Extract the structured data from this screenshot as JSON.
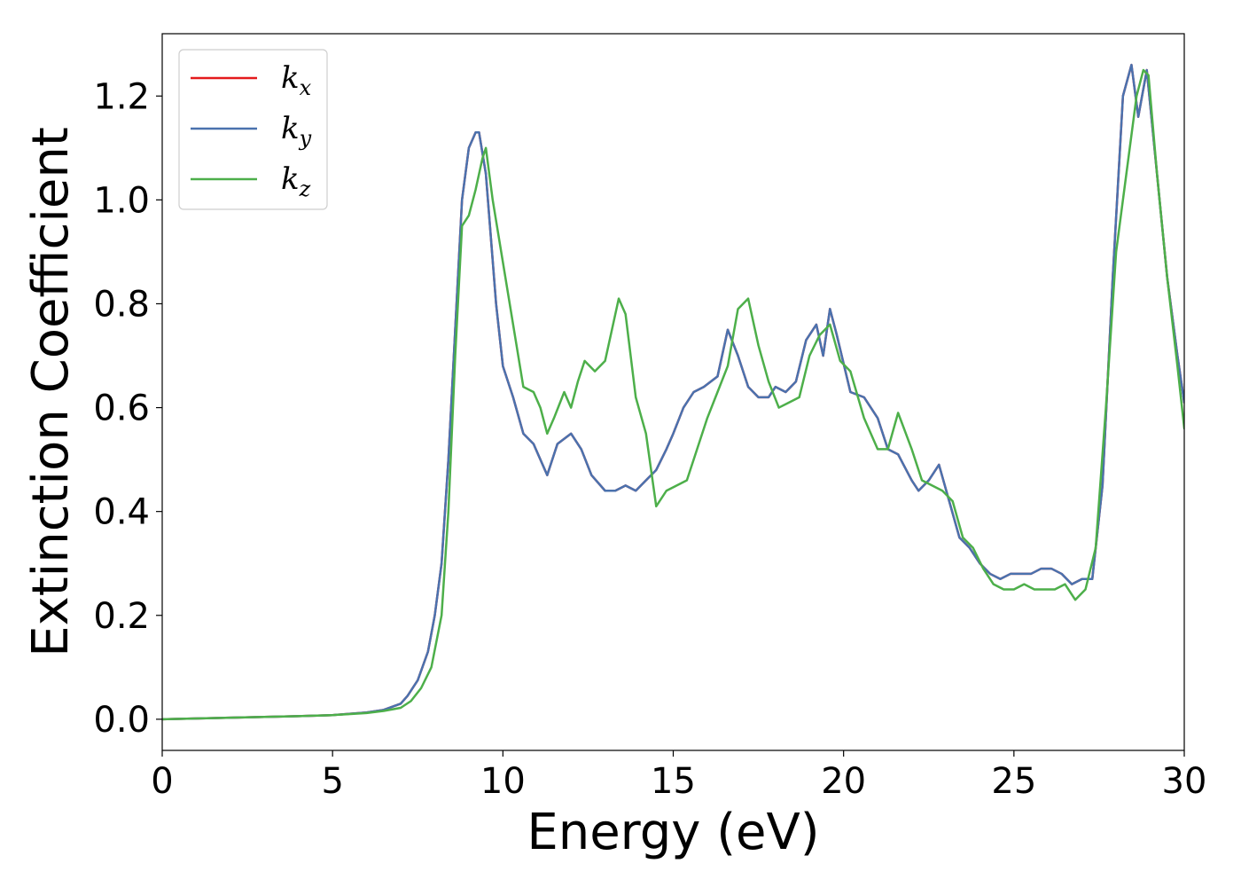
{
  "chart_data": {
    "type": "line",
    "title": "",
    "xlabel": "Energy (eV)",
    "ylabel": "Extinction Coefficient",
    "xlim": [
      0,
      30
    ],
    "ylim": [
      -0.06,
      1.32
    ],
    "xticks": [
      0,
      5,
      10,
      15,
      20,
      25,
      30
    ],
    "xtick_labels": [
      "0",
      "5",
      "10",
      "15",
      "20",
      "25",
      "30"
    ],
    "yticks": [
      0.0,
      0.2,
      0.4,
      0.6,
      0.8,
      1.0,
      1.2
    ],
    "ytick_labels": [
      "0.0",
      "0.2",
      "0.4",
      "0.6",
      "0.8",
      "1.0",
      "1.2"
    ],
    "grid": false,
    "legend_position": "top-left",
    "series": [
      {
        "name": "k",
        "subscript": "x",
        "color": "#e41a1c",
        "x": [
          0,
          2,
          4,
          5,
          6,
          6.5,
          7,
          7.2,
          7.5,
          7.8,
          8.0,
          8.2,
          8.4,
          8.6,
          8.8,
          9.0,
          9.2,
          9.3,
          9.5,
          9.8,
          10.0,
          10.3,
          10.6,
          10.9,
          11.3,
          11.6,
          12.0,
          12.3,
          12.6,
          13.0,
          13.3,
          13.6,
          13.9,
          14.2,
          14.5,
          14.8,
          15.0,
          15.3,
          15.6,
          15.9,
          16.3,
          16.6,
          16.9,
          17.2,
          17.5,
          17.8,
          18.0,
          18.3,
          18.6,
          18.9,
          19.2,
          19.4,
          19.6,
          19.8,
          20.2,
          20.6,
          21.0,
          21.3,
          21.6,
          22.0,
          22.2,
          22.5,
          22.8,
          23.1,
          23.4,
          23.7,
          24.0,
          24.3,
          24.6,
          24.9,
          25.2,
          25.5,
          25.8,
          26.1,
          26.4,
          26.7,
          27.0,
          27.3,
          27.6,
          27.9,
          28.2,
          28.45,
          28.65,
          28.9,
          29.2,
          29.5,
          29.8,
          30.0
        ],
        "values": [
          0.0,
          0.003,
          0.006,
          0.008,
          0.013,
          0.018,
          0.03,
          0.045,
          0.075,
          0.13,
          0.2,
          0.3,
          0.5,
          0.75,
          1.0,
          1.1,
          1.13,
          1.13,
          1.05,
          0.8,
          0.68,
          0.62,
          0.55,
          0.53,
          0.47,
          0.53,
          0.55,
          0.52,
          0.47,
          0.44,
          0.44,
          0.45,
          0.44,
          0.46,
          0.48,
          0.52,
          0.55,
          0.6,
          0.63,
          0.64,
          0.66,
          0.75,
          0.7,
          0.64,
          0.62,
          0.62,
          0.64,
          0.63,
          0.65,
          0.73,
          0.76,
          0.7,
          0.79,
          0.74,
          0.63,
          0.62,
          0.58,
          0.52,
          0.51,
          0.46,
          0.44,
          0.46,
          0.49,
          0.42,
          0.35,
          0.33,
          0.3,
          0.28,
          0.27,
          0.28,
          0.28,
          0.28,
          0.29,
          0.29,
          0.28,
          0.26,
          0.27,
          0.27,
          0.45,
          0.85,
          1.2,
          1.26,
          1.16,
          1.25,
          1.05,
          0.85,
          0.7,
          0.61
        ]
      },
      {
        "name": "k",
        "subscript": "y",
        "color": "#4a72ae",
        "x": [
          0,
          2,
          4,
          5,
          6,
          6.5,
          7,
          7.2,
          7.5,
          7.8,
          8.0,
          8.2,
          8.4,
          8.6,
          8.8,
          9.0,
          9.2,
          9.3,
          9.5,
          9.8,
          10.0,
          10.3,
          10.6,
          10.9,
          11.3,
          11.6,
          12.0,
          12.3,
          12.6,
          13.0,
          13.3,
          13.6,
          13.9,
          14.2,
          14.5,
          14.8,
          15.0,
          15.3,
          15.6,
          15.9,
          16.3,
          16.6,
          16.9,
          17.2,
          17.5,
          17.8,
          18.0,
          18.3,
          18.6,
          18.9,
          19.2,
          19.4,
          19.6,
          19.8,
          20.2,
          20.6,
          21.0,
          21.3,
          21.6,
          22.0,
          22.2,
          22.5,
          22.8,
          23.1,
          23.4,
          23.7,
          24.0,
          24.3,
          24.6,
          24.9,
          25.2,
          25.5,
          25.8,
          26.1,
          26.4,
          26.7,
          27.0,
          27.3,
          27.6,
          27.9,
          28.2,
          28.45,
          28.65,
          28.9,
          29.2,
          29.5,
          29.8,
          30.0
        ],
        "values": [
          0.0,
          0.003,
          0.006,
          0.008,
          0.013,
          0.018,
          0.03,
          0.045,
          0.075,
          0.13,
          0.2,
          0.3,
          0.5,
          0.75,
          1.0,
          1.1,
          1.13,
          1.13,
          1.05,
          0.8,
          0.68,
          0.62,
          0.55,
          0.53,
          0.47,
          0.53,
          0.55,
          0.52,
          0.47,
          0.44,
          0.44,
          0.45,
          0.44,
          0.46,
          0.48,
          0.52,
          0.55,
          0.6,
          0.63,
          0.64,
          0.66,
          0.75,
          0.7,
          0.64,
          0.62,
          0.62,
          0.64,
          0.63,
          0.65,
          0.73,
          0.76,
          0.7,
          0.79,
          0.74,
          0.63,
          0.62,
          0.58,
          0.52,
          0.51,
          0.46,
          0.44,
          0.46,
          0.49,
          0.42,
          0.35,
          0.33,
          0.3,
          0.28,
          0.27,
          0.28,
          0.28,
          0.28,
          0.29,
          0.29,
          0.28,
          0.26,
          0.27,
          0.27,
          0.45,
          0.85,
          1.2,
          1.26,
          1.16,
          1.25,
          1.05,
          0.85,
          0.7,
          0.61
        ]
      },
      {
        "name": "k",
        "subscript": "z",
        "color": "#4daf4a",
        "x": [
          0,
          2,
          4,
          5,
          6,
          6.5,
          7,
          7.3,
          7.6,
          7.9,
          8.2,
          8.4,
          8.6,
          8.8,
          9.0,
          9.2,
          9.4,
          9.5,
          9.7,
          10.0,
          10.3,
          10.6,
          10.9,
          11.1,
          11.3,
          11.5,
          11.8,
          12.0,
          12.2,
          12.4,
          12.7,
          13.0,
          13.2,
          13.4,
          13.6,
          13.9,
          14.2,
          14.5,
          14.8,
          15.1,
          15.4,
          15.7,
          16.0,
          16.3,
          16.6,
          16.9,
          17.2,
          17.5,
          17.8,
          18.1,
          18.4,
          18.7,
          19.0,
          19.3,
          19.6,
          19.9,
          20.2,
          20.6,
          21.0,
          21.3,
          21.6,
          22.0,
          22.3,
          22.6,
          22.9,
          23.2,
          23.5,
          23.8,
          24.1,
          24.4,
          24.7,
          25.0,
          25.3,
          25.6,
          25.9,
          26.2,
          26.5,
          26.8,
          27.1,
          27.4,
          27.7,
          28.0,
          28.3,
          28.6,
          28.8,
          28.95,
          29.2,
          29.5,
          29.8,
          30.0
        ],
        "values": [
          0.0,
          0.003,
          0.006,
          0.008,
          0.012,
          0.016,
          0.022,
          0.035,
          0.06,
          0.1,
          0.2,
          0.4,
          0.7,
          0.95,
          0.97,
          1.02,
          1.08,
          1.1,
          1.0,
          0.88,
          0.76,
          0.64,
          0.63,
          0.6,
          0.55,
          0.58,
          0.63,
          0.6,
          0.65,
          0.69,
          0.67,
          0.69,
          0.75,
          0.81,
          0.78,
          0.62,
          0.55,
          0.41,
          0.44,
          0.45,
          0.46,
          0.52,
          0.58,
          0.63,
          0.68,
          0.79,
          0.81,
          0.72,
          0.65,
          0.6,
          0.61,
          0.62,
          0.7,
          0.74,
          0.76,
          0.69,
          0.67,
          0.58,
          0.52,
          0.52,
          0.59,
          0.52,
          0.46,
          0.45,
          0.44,
          0.42,
          0.35,
          0.33,
          0.29,
          0.26,
          0.25,
          0.25,
          0.26,
          0.25,
          0.25,
          0.25,
          0.26,
          0.23,
          0.25,
          0.33,
          0.6,
          0.9,
          1.05,
          1.2,
          1.25,
          1.24,
          1.05,
          0.85,
          0.68,
          0.56
        ]
      }
    ]
  }
}
